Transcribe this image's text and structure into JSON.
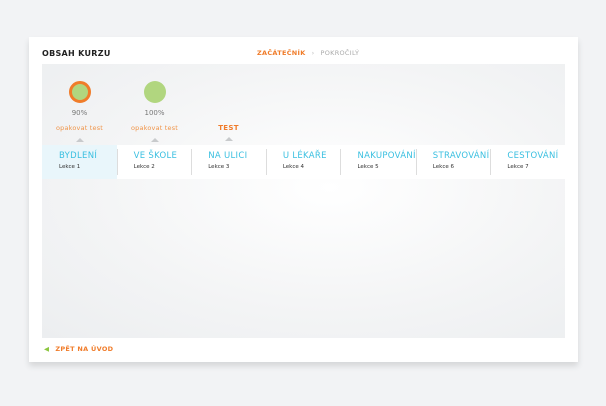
{
  "header": {
    "title": "OBSAH KURZU",
    "levels": [
      {
        "label": "ZAČÁTEČNÍK",
        "active": true
      },
      {
        "label": "POKROČILÝ",
        "active": false
      }
    ],
    "separator": "›"
  },
  "progress": [
    {
      "percent": "90%",
      "action": "opakovat test",
      "status": "fail"
    },
    {
      "percent": "100%",
      "action": "opakovat test",
      "status": "pass"
    },
    {
      "action": "TEST"
    }
  ],
  "tabs": [
    {
      "name": "BYDLENÍ",
      "sub": "Lekce 1"
    },
    {
      "name": "VE ŠKOLE",
      "sub": "Lekce 2"
    },
    {
      "name": "NA ULICI",
      "sub": "Lekce 3"
    },
    {
      "name": "U LÉKAŘE",
      "sub": "Lekce 4"
    },
    {
      "name": "NAKUPOVÁNÍ",
      "sub": "Lekce 5"
    },
    {
      "name": "STRAVOVÁNÍ",
      "sub": "Lekce 6"
    },
    {
      "name": "CESTOVÁNÍ",
      "sub": "Lekce 7"
    }
  ],
  "footer": {
    "back_label": "ZPĚT NA ÚVOD",
    "back_icon": "triangle-left-icon"
  },
  "colors": {
    "accent": "#f07c2a",
    "tab_text": "#39bfe0",
    "pass": "#b1d67f"
  }
}
